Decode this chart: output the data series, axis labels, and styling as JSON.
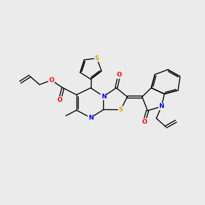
{
  "background_color": "#ebebeb",
  "atom_colors": {
    "C": "#000000",
    "N": "#0000ff",
    "O": "#ff0000",
    "S": "#ccaa00"
  },
  "figsize": [
    3.0,
    3.0
  ],
  "dpi": 100
}
